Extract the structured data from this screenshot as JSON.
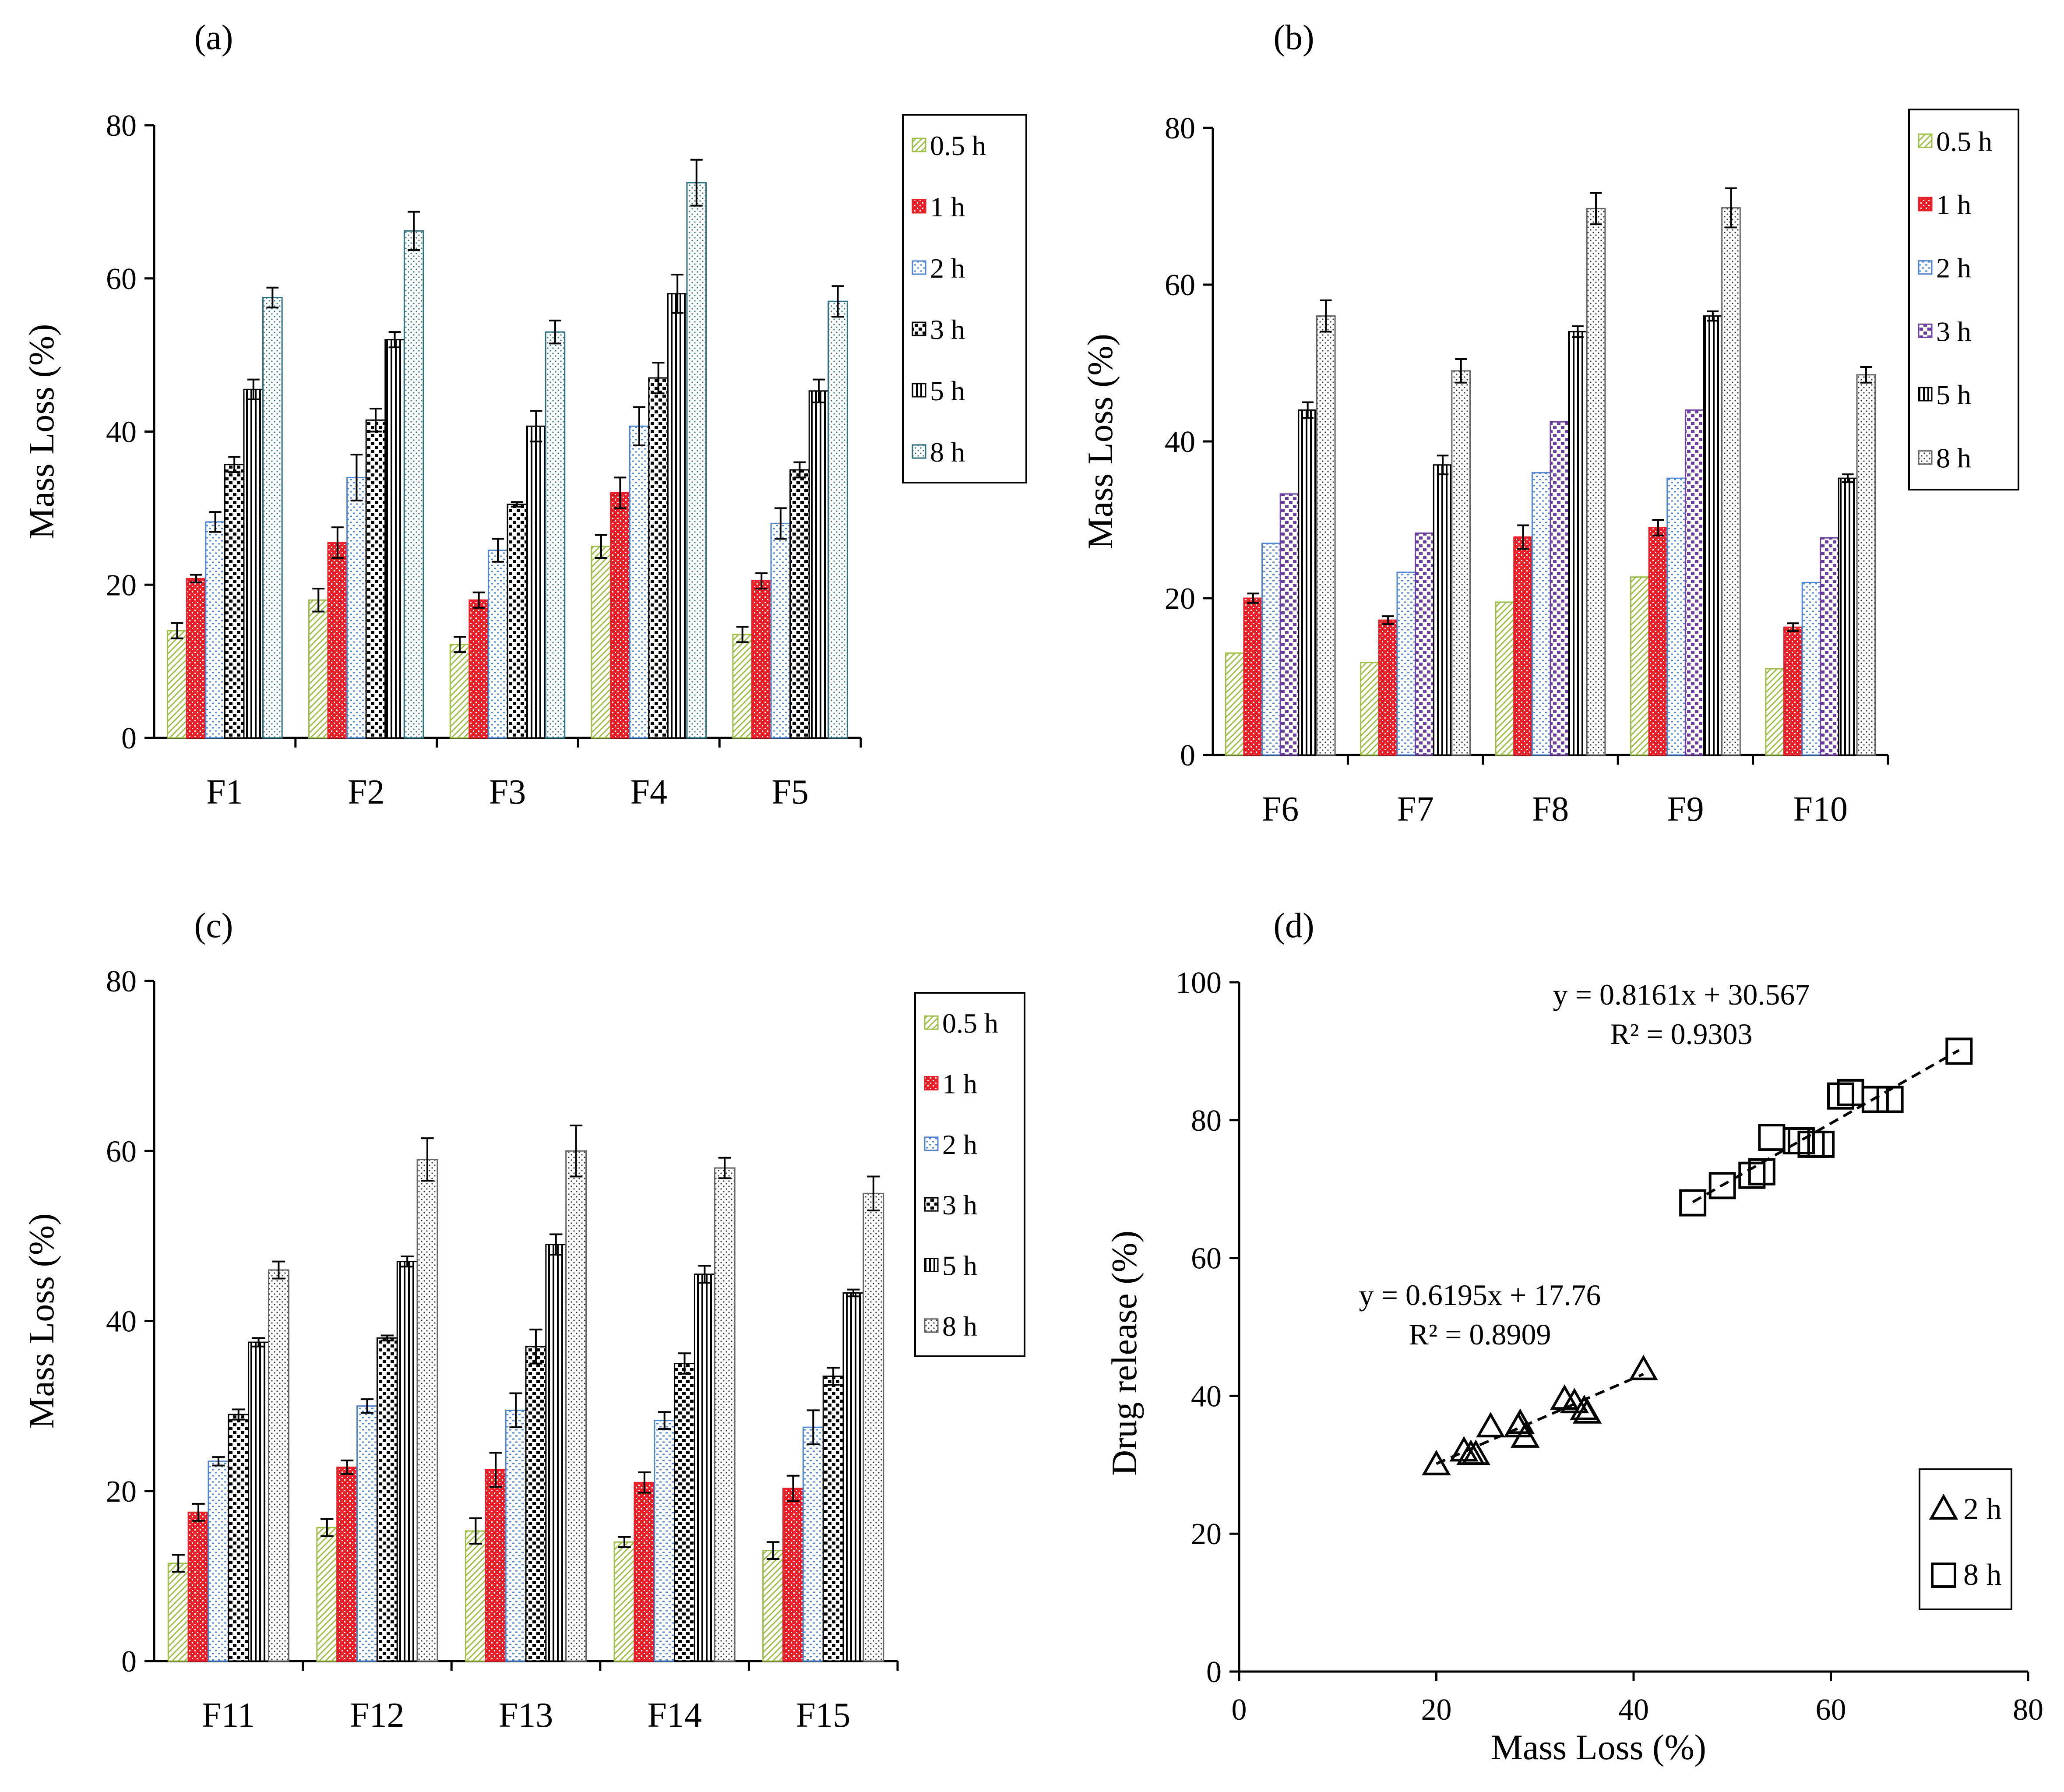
{
  "colors": {
    "c05": "#9dbf4a",
    "c1": "#e8202a",
    "c2": "#4f86cf",
    "c3": "#000000",
    "c5": "#000000",
    "c8": "#2e6f7d",
    "c3b": "#6b3fa0",
    "c8b": "#8a8a8a",
    "axis": "#000000"
  },
  "chart_data": [
    {
      "panel": "a",
      "label": "(a)",
      "type": "bar",
      "title": "",
      "ylabel": "Mass Loss (%)",
      "xlabel": "",
      "ylim": [
        0,
        80
      ],
      "yticks": [
        "0",
        "20",
        "40",
        "60",
        "80"
      ],
      "categories": [
        "F1",
        "F2",
        "F3",
        "F4",
        "F5"
      ],
      "legend_position": "top-right",
      "series": [
        {
          "name": "0.5 h",
          "values": [
            14,
            18,
            12.2,
            25,
            13.5
          ],
          "errors": [
            1,
            1.5,
            1,
            1.5,
            1
          ],
          "color": "c05"
        },
        {
          "name": "1 h",
          "values": [
            20.8,
            25.5,
            18,
            32,
            20.5
          ],
          "errors": [
            0.5,
            2,
            1,
            2,
            1
          ],
          "color": "c1"
        },
        {
          "name": "2 h",
          "values": [
            28.2,
            34,
            24.5,
            40.7,
            28
          ],
          "errors": [
            1.3,
            3,
            1.5,
            2.5,
            2
          ],
          "color": "c2"
        },
        {
          "name": "3 h",
          "values": [
            35.7,
            41.5,
            30.5,
            47,
            35
          ],
          "errors": [
            1,
            1.5,
            0.3,
            2,
            1
          ],
          "color": "c3"
        },
        {
          "name": "5 h",
          "values": [
            45.5,
            52,
            40.7,
            58,
            45.3
          ],
          "errors": [
            1.3,
            1,
            2,
            2.5,
            1.5
          ],
          "color": "c5"
        },
        {
          "name": "8 h",
          "values": [
            57.5,
            66.2,
            53,
            72.5,
            57
          ],
          "errors": [
            1.3,
            2.5,
            1.5,
            3,
            2
          ],
          "color": "c8"
        }
      ]
    },
    {
      "panel": "b",
      "label": "(b)",
      "type": "bar",
      "title": "",
      "ylabel": "Mass Loss (%)",
      "xlabel": "",
      "ylim": [
        0,
        80
      ],
      "yticks": [
        "0",
        "20",
        "40",
        "60",
        "80"
      ],
      "categories": [
        "F6",
        "F7",
        "F8",
        "F9",
        "F10"
      ],
      "legend_position": "top-right",
      "series": [
        {
          "name": "0.5 h",
          "values": [
            13,
            11.8,
            19.5,
            22.7,
            11
          ],
          "errors": [
            0,
            0,
            0,
            0,
            0
          ],
          "color": "c05"
        },
        {
          "name": "1 h",
          "values": [
            20,
            17.2,
            27.8,
            29,
            16.3
          ],
          "errors": [
            0.6,
            0.5,
            1.5,
            1,
            0.5
          ],
          "color": "c1"
        },
        {
          "name": "2 h",
          "values": [
            27,
            23.3,
            36,
            35.3,
            22
          ],
          "errors": [
            0,
            0,
            0,
            0,
            0
          ],
          "color": "c2"
        },
        {
          "name": "3 h",
          "values": [
            33.3,
            28.3,
            42.5,
            44,
            27.7
          ],
          "errors": [
            0,
            0,
            0,
            0,
            0
          ],
          "color": "c3b"
        },
        {
          "name": "5 h",
          "values": [
            44,
            37,
            54,
            56,
            35.3
          ],
          "errors": [
            1,
            1.2,
            0.7,
            0.6,
            0.5
          ],
          "color": "c5"
        },
        {
          "name": "8 h",
          "values": [
            56,
            49,
            69.7,
            69.8,
            48.5
          ],
          "errors": [
            2,
            1.5,
            2,
            2.5,
            1
          ],
          "color": "c8b"
        }
      ]
    },
    {
      "panel": "c",
      "label": "(c)",
      "type": "bar",
      "title": "",
      "ylabel": "Mass Loss (%)",
      "xlabel": "",
      "ylim": [
        0,
        80
      ],
      "yticks": [
        "0",
        "20",
        "40",
        "60",
        "80"
      ],
      "categories": [
        "F11",
        "F12",
        "F13",
        "F14",
        "F15"
      ],
      "legend_position": "top-right",
      "series": [
        {
          "name": "0.5 h",
          "values": [
            11.5,
            15.7,
            15.3,
            14,
            13
          ],
          "errors": [
            1,
            1,
            1.5,
            0.6,
            1
          ],
          "color": "c05"
        },
        {
          "name": "1 h",
          "values": [
            17.5,
            22.8,
            22.5,
            21,
            20.3
          ],
          "errors": [
            1,
            0.8,
            2,
            1.2,
            1.5
          ],
          "color": "c1"
        },
        {
          "name": "2 h",
          "values": [
            23.5,
            30,
            29.5,
            28.3,
            27.5
          ],
          "errors": [
            0.5,
            0.8,
            2,
            1,
            2
          ],
          "color": "c2"
        },
        {
          "name": "3 h",
          "values": [
            29,
            38,
            37,
            35,
            33.5
          ],
          "errors": [
            0.6,
            0.3,
            2,
            1.2,
            1
          ],
          "color": "c3"
        },
        {
          "name": "5 h",
          "values": [
            37.5,
            47,
            49,
            45.5,
            43.3
          ],
          "errors": [
            0.5,
            0.6,
            1.2,
            1,
            0.4
          ],
          "color": "c5"
        },
        {
          "name": "8 h",
          "values": [
            46,
            59,
            60,
            58,
            55
          ],
          "errors": [
            1,
            2.5,
            3,
            1.2,
            2
          ],
          "color": "c8b"
        }
      ]
    },
    {
      "panel": "d",
      "label": "(d)",
      "type": "scatter",
      "title": "",
      "xlabel": "Mass Loss (%)",
      "ylabel": "Drug release (%)",
      "xlim": [
        0,
        80
      ],
      "ylim": [
        0,
        100
      ],
      "xticks": [
        "0",
        "20",
        "40",
        "60",
        "80"
      ],
      "yticks": [
        "0",
        "20",
        "40",
        "60",
        "80",
        "100"
      ],
      "legend_position": "bottom-right",
      "series": [
        {
          "name": "2 h",
          "marker": "triangle",
          "x": [
            20,
            22.8,
            23.5,
            24,
            25.5,
            28.3,
            28.5,
            29,
            33,
            34,
            35,
            35.3,
            41
          ],
          "y": [
            30,
            32,
            31.5,
            31.5,
            35.5,
            35.5,
            36,
            34,
            39.5,
            39,
            38,
            37.5,
            43.8
          ],
          "trendline": {
            "x": [
              20,
              41
            ],
            "y": [
              30.15,
              43.16
            ]
          },
          "equation": "y = 0.6195x + 17.76",
          "r2": "R² = 0.8909"
        },
        {
          "name": "8 h",
          "marker": "square",
          "x": [
            46,
            49,
            52,
            53,
            54,
            56.5,
            57,
            58,
            59,
            61,
            62,
            64.5,
            66,
            73
          ],
          "y": [
            68,
            70.5,
            72,
            72.5,
            77.5,
            77,
            77,
            76.5,
            76.5,
            83.5,
            84,
            83,
            83,
            90
          ],
          "trendline": {
            "x": [
              46,
              73
            ],
            "y": [
              68.11,
              90.14
            ]
          },
          "equation": "y = 0.8161x + 30.567",
          "r2": "R² = 0.9303"
        }
      ]
    }
  ]
}
